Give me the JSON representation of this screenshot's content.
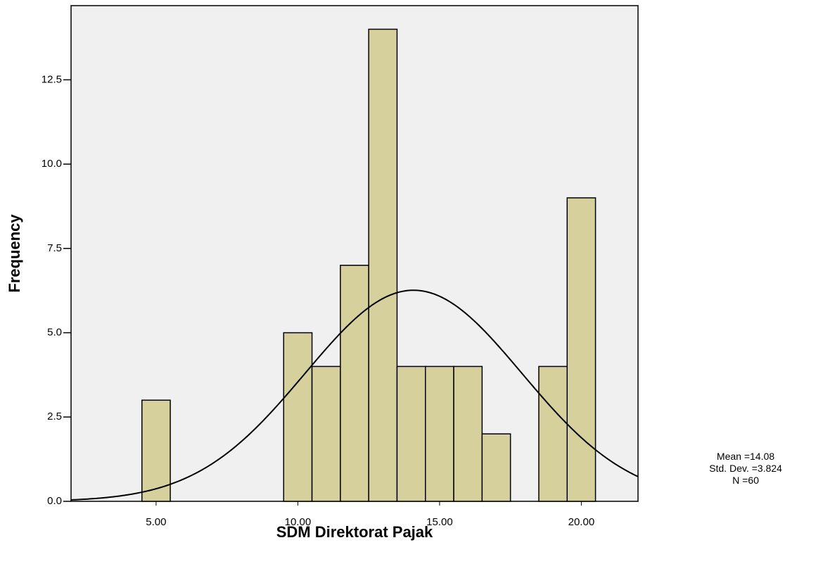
{
  "chart_data": {
    "type": "histogram",
    "xlabel": "SDM Direktorat Pajak",
    "ylabel": "Frequency",
    "bins": [
      4.5,
      5.5,
      6.5,
      7.5,
      8.5,
      9.5,
      10.5,
      11.5,
      12.5,
      13.5,
      14.5,
      15.5,
      16.5,
      17.5,
      18.5,
      19.5,
      20.5
    ],
    "values": [
      3,
      0,
      0,
      0,
      0,
      5,
      4,
      7,
      14,
      4,
      4,
      4,
      2,
      0,
      4,
      9
    ],
    "color": "#d6d19c",
    "xlim": [
      2,
      22
    ],
    "ylim": [
      0,
      14.7
    ],
    "xticks": [
      {
        "value": 5,
        "label": "5.00"
      },
      {
        "value": 10,
        "label": "10.00"
      },
      {
        "value": 15,
        "label": "15.00"
      },
      {
        "value": 20,
        "label": "20.00"
      }
    ],
    "yticks": [
      {
        "value": 0,
        "label": "0.0"
      },
      2.5,
      {
        "value": 5,
        "label": "5.0"
      },
      7.5,
      {
        "value": 10,
        "label": "10.0"
      },
      12.5
    ],
    "stats": [
      {
        "label": "Mean =",
        "value": 14.08
      },
      {
        "label": "Std. Dev. =",
        "value": 3.824
      },
      {
        "label": "N =",
        "value": 60
      }
    ]
  }
}
